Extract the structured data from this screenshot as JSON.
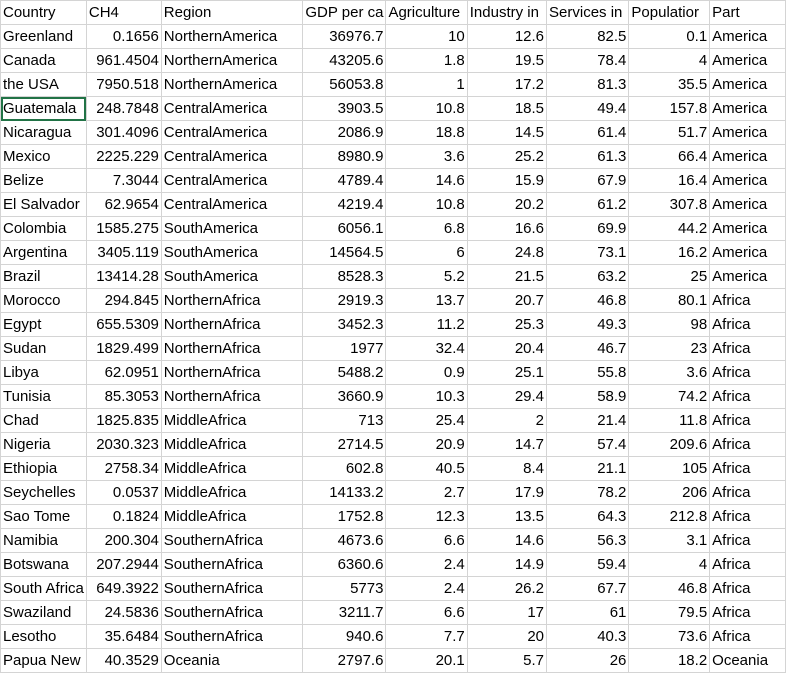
{
  "headers": [
    "Country",
    "CH4",
    "Region",
    "GDP per ca",
    "Agriculture",
    "Industry in",
    "Services in",
    "Populatior",
    "Part"
  ],
  "rows": [
    [
      "Greenland",
      "0.1656",
      "NorthernAmerica",
      "36976.7",
      "10",
      "12.6",
      "82.5",
      "0.1",
      "America"
    ],
    [
      "Canada",
      "961.4504",
      "NorthernAmerica",
      "43205.6",
      "1.8",
      "19.5",
      "78.4",
      "4",
      "America"
    ],
    [
      "the USA",
      "7950.518",
      "NorthernAmerica",
      "56053.8",
      "1",
      "17.2",
      "81.3",
      "35.5",
      "America"
    ],
    [
      "Guatemala",
      "248.7848",
      "CentralAmerica",
      "3903.5",
      "10.8",
      "18.5",
      "49.4",
      "157.8",
      "America"
    ],
    [
      "Nicaragua",
      "301.4096",
      "CentralAmerica",
      "2086.9",
      "18.8",
      "14.5",
      "61.4",
      "51.7",
      "America"
    ],
    [
      "Mexico",
      "2225.229",
      "CentralAmerica",
      "8980.9",
      "3.6",
      "25.2",
      "61.3",
      "66.4",
      "America"
    ],
    [
      "Belize",
      "7.3044",
      "CentralAmerica",
      "4789.4",
      "14.6",
      "15.9",
      "67.9",
      "16.4",
      "America"
    ],
    [
      "El Salvador",
      "62.9654",
      "CentralAmerica",
      "4219.4",
      "10.8",
      "20.2",
      "61.2",
      "307.8",
      "America"
    ],
    [
      "Colombia",
      "1585.275",
      "SouthAmerica",
      "6056.1",
      "6.8",
      "16.6",
      "69.9",
      "44.2",
      "America"
    ],
    [
      "Argentina",
      "3405.119",
      "SouthAmerica",
      "14564.5",
      "6",
      "24.8",
      "73.1",
      "16.2",
      "America"
    ],
    [
      "Brazil",
      "13414.28",
      "SouthAmerica",
      "8528.3",
      "5.2",
      "21.5",
      "63.2",
      "25",
      "America"
    ],
    [
      "Morocco",
      "294.845",
      "NorthernAfrica",
      "2919.3",
      "13.7",
      "20.7",
      "46.8",
      "80.1",
      "Africa"
    ],
    [
      "Egypt",
      "655.5309",
      "NorthernAfrica",
      "3452.3",
      "11.2",
      "25.3",
      "49.3",
      "98",
      "Africa"
    ],
    [
      "Sudan",
      "1829.499",
      "NorthernAfrica",
      "1977",
      "32.4",
      "20.4",
      "46.7",
      "23",
      "Africa"
    ],
    [
      "Libya",
      "62.0951",
      "NorthernAfrica",
      "5488.2",
      "0.9",
      "25.1",
      "55.8",
      "3.6",
      "Africa"
    ],
    [
      "Tunisia",
      "85.3053",
      "NorthernAfrica",
      "3660.9",
      "10.3",
      "29.4",
      "58.9",
      "74.2",
      "Africa"
    ],
    [
      "Chad",
      "1825.835",
      "MiddleAfrica",
      "713",
      "25.4",
      "2",
      "21.4",
      "11.8",
      "Africa"
    ],
    [
      "Nigeria",
      "2030.323",
      "MiddleAfrica",
      "2714.5",
      "20.9",
      "14.7",
      "57.4",
      "209.6",
      "Africa"
    ],
    [
      "Ethiopia",
      "2758.34",
      "MiddleAfrica",
      "602.8",
      "40.5",
      "8.4",
      "21.1",
      "105",
      "Africa"
    ],
    [
      "Seychelles",
      "0.0537",
      "MiddleAfrica",
      "14133.2",
      "2.7",
      "17.9",
      "78.2",
      "206",
      "Africa"
    ],
    [
      "Sao Tome",
      "0.1824",
      "MiddleAfrica",
      "1752.8",
      "12.3",
      "13.5",
      "64.3",
      "212.8",
      "Africa"
    ],
    [
      "Namibia",
      "200.304",
      "SouthernAfrica",
      "4673.6",
      "6.6",
      "14.6",
      "56.3",
      "3.1",
      "Africa"
    ],
    [
      "Botswana",
      "207.2944",
      "SouthernAfrica",
      "6360.6",
      "2.4",
      "14.9",
      "59.4",
      "4",
      "Africa"
    ],
    [
      "South Africa",
      "649.3922",
      "SouthernAfrica",
      "5773",
      "2.4",
      "26.2",
      "67.7",
      "46.8",
      "Africa"
    ],
    [
      "Swaziland",
      "24.5836",
      "SouthernAfrica",
      "3211.7",
      "6.6",
      "17",
      "61",
      "79.5",
      "Africa"
    ],
    [
      "Lesotho",
      "35.6484",
      "SouthernAfrica",
      "940.6",
      "7.7",
      "20",
      "40.3",
      "73.6",
      "Africa"
    ],
    [
      "Papua New",
      "40.3529",
      "Oceania",
      "2797.6",
      "20.1",
      "5.7",
      "26",
      "18.2",
      "Oceania"
    ]
  ]
}
